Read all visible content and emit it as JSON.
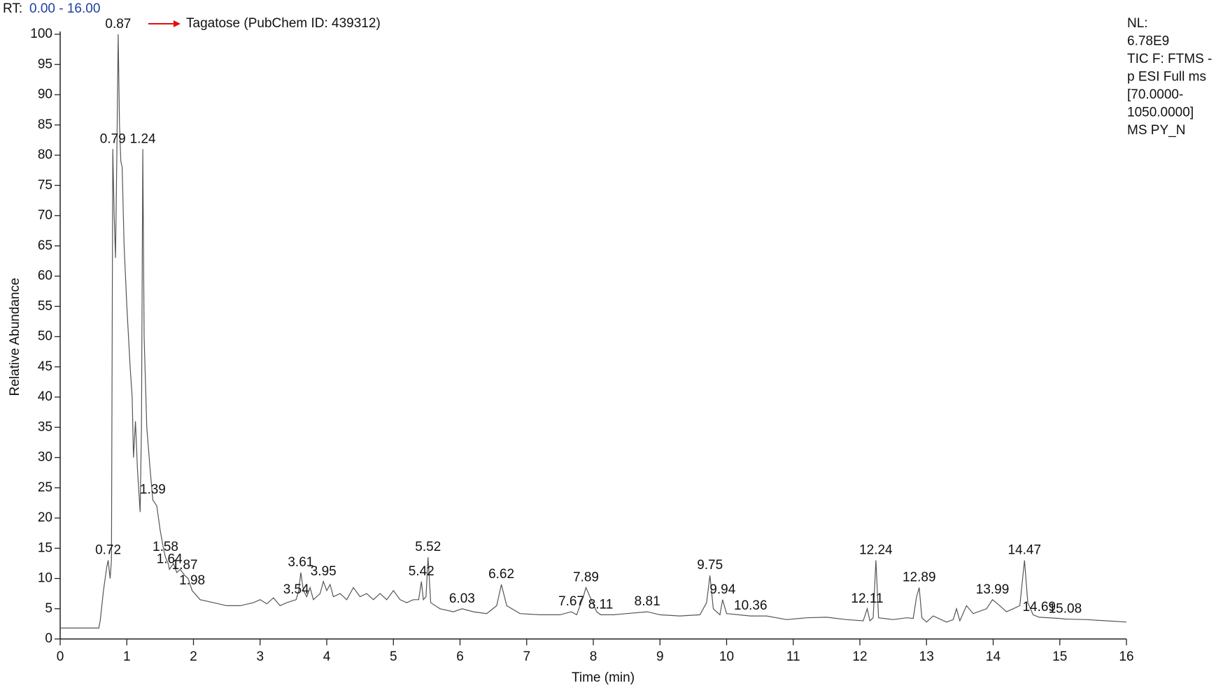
{
  "header": {
    "label": "RT:",
    "range": "0.00 - 16.00"
  },
  "chart_data": {
    "type": "line",
    "annotation": "Tagatose (PubChem ID: 439312)",
    "info": [
      "NL:",
      "6.78E9",
      "TIC F: FTMS -",
      "p ESI Full ms",
      "[70.0000-",
      "1050.0000]",
      "MS PY_N"
    ],
    "xlabel": "Time (min)",
    "ylabel": "Relative Abundance",
    "color": "#555555",
    "xlim": [
      0,
      16
    ],
    "ylim": [
      0,
      100
    ],
    "xticks": [
      0,
      1,
      2,
      3,
      4,
      5,
      6,
      7,
      8,
      9,
      10,
      11,
      12,
      13,
      14,
      15,
      16
    ],
    "yticks": [
      0,
      5,
      10,
      15,
      20,
      25,
      30,
      35,
      40,
      45,
      50,
      55,
      60,
      65,
      70,
      75,
      80,
      85,
      90,
      95,
      100
    ],
    "x": [
      0,
      0.58,
      0.6,
      0.65,
      0.7,
      0.72,
      0.75,
      0.77,
      0.79,
      0.81,
      0.83,
      0.85,
      0.87,
      0.89,
      0.91,
      0.93,
      0.96,
      1.0,
      1.05,
      1.08,
      1.1,
      1.13,
      1.16,
      1.2,
      1.22,
      1.24,
      1.26,
      1.3,
      1.35,
      1.39,
      1.45,
      1.5,
      1.55,
      1.58,
      1.62,
      1.64,
      1.7,
      1.75,
      1.8,
      1.87,
      1.92,
      1.98,
      2.1,
      2.3,
      2.5,
      2.7,
      2.9,
      3.0,
      3.1,
      3.2,
      3.3,
      3.4,
      3.54,
      3.58,
      3.61,
      3.65,
      3.7,
      3.75,
      3.8,
      3.9,
      3.95,
      4.0,
      4.05,
      4.1,
      4.2,
      4.3,
      4.4,
      4.5,
      4.6,
      4.7,
      4.8,
      4.9,
      5.0,
      5.1,
      5.2,
      5.3,
      5.38,
      5.42,
      5.45,
      5.49,
      5.52,
      5.56,
      5.7,
      5.9,
      6.03,
      6.2,
      6.4,
      6.55,
      6.62,
      6.7,
      6.9,
      7.2,
      7.5,
      7.67,
      7.75,
      7.85,
      7.89,
      7.95,
      8.05,
      8.11,
      8.3,
      8.5,
      8.81,
      9.0,
      9.3,
      9.6,
      9.7,
      9.75,
      9.8,
      9.9,
      9.94,
      10.0,
      10.36,
      10.6,
      10.9,
      11.2,
      11.5,
      11.8,
      12.05,
      12.11,
      12.15,
      12.2,
      12.24,
      12.28,
      12.5,
      12.7,
      12.8,
      12.85,
      12.89,
      12.93,
      13.0,
      13.1,
      13.3,
      13.4,
      13.45,
      13.5,
      13.6,
      13.7,
      13.9,
      13.99,
      14.1,
      14.2,
      14.3,
      14.4,
      14.47,
      14.52,
      14.6,
      14.69,
      15.0,
      15.08,
      15.4,
      15.7,
      16.0
    ],
    "values": [
      1.8,
      1.8,
      3,
      8,
      12,
      13,
      10,
      13,
      81,
      70,
      63,
      80,
      100,
      85,
      79,
      78,
      65,
      55,
      45,
      40,
      30,
      36,
      28,
      21,
      35,
      81,
      50,
      35,
      28,
      23,
      22,
      18,
      15,
      13.5,
      12.5,
      11.5,
      12.5,
      11,
      11.5,
      10.5,
      10,
      8,
      6.5,
      6,
      5.5,
      5.5,
      6,
      6.5,
      5.8,
      6.8,
      5.5,
      6,
      6.5,
      8,
      11,
      8,
      7,
      8.5,
      6.5,
      7.5,
      9.5,
      8,
      9,
      7,
      7.5,
      6.5,
      8.5,
      7,
      7.5,
      6.5,
      7.5,
      6.5,
      8,
      6.5,
      6,
      6.5,
      6.5,
      9.5,
      6.5,
      7,
      13.5,
      6,
      5,
      4.5,
      5,
      4.5,
      4.2,
      5.5,
      9,
      5.5,
      4.2,
      4,
      4,
      4.5,
      4,
      7,
      8.5,
      7,
      4.5,
      4,
      4,
      4.2,
      4.5,
      4,
      3.8,
      4,
      6,
      10.5,
      5,
      4,
      6.5,
      4.2,
      3.8,
      3.8,
      3.2,
      3.5,
      3.6,
      3.2,
      3,
      5,
      3,
      3.5,
      13,
      3.5,
      3.2,
      3.5,
      3.4,
      7,
      8.5,
      3.5,
      2.8,
      3.8,
      2.8,
      3.2,
      5,
      3,
      5.5,
      4.2,
      5,
      6.5,
      5.5,
      4.5,
      5,
      5.5,
      13,
      6,
      4,
      3.6,
      3.4,
      3.3,
      3.2,
      3,
      2.8
    ],
    "peaks": [
      {
        "rt": 0.72,
        "value": 13
      },
      {
        "rt": 0.79,
        "value": 81
      },
      {
        "rt": 0.87,
        "value": 100
      },
      {
        "rt": 1.24,
        "value": 81
      },
      {
        "rt": 1.39,
        "value": 23
      },
      {
        "rt": 1.58,
        "value": 13.5
      },
      {
        "rt": 1.64,
        "value": 11.5
      },
      {
        "rt": 1.87,
        "value": 10.5
      },
      {
        "rt": 1.98,
        "value": 8
      },
      {
        "rt": 3.54,
        "value": 6.5
      },
      {
        "rt": 3.61,
        "value": 11
      },
      {
        "rt": 3.95,
        "value": 9.5
      },
      {
        "rt": 5.42,
        "value": 9.5
      },
      {
        "rt": 5.52,
        "value": 13.5
      },
      {
        "rt": 6.03,
        "value": 5
      },
      {
        "rt": 6.62,
        "value": 9
      },
      {
        "rt": 7.67,
        "value": 4.5
      },
      {
        "rt": 7.89,
        "value": 8.5
      },
      {
        "rt": 8.11,
        "value": 4
      },
      {
        "rt": 8.81,
        "value": 4.5
      },
      {
        "rt": 9.75,
        "value": 10.5
      },
      {
        "rt": 9.94,
        "value": 6.5
      },
      {
        "rt": 10.36,
        "value": 3.8
      },
      {
        "rt": 12.11,
        "value": 5
      },
      {
        "rt": 12.24,
        "value": 13
      },
      {
        "rt": 12.89,
        "value": 8.5
      },
      {
        "rt": 13.99,
        "value": 6.5
      },
      {
        "rt": 14.47,
        "value": 13
      },
      {
        "rt": 14.69,
        "value": 3.6
      },
      {
        "rt": 15.08,
        "value": 3.3
      }
    ]
  }
}
